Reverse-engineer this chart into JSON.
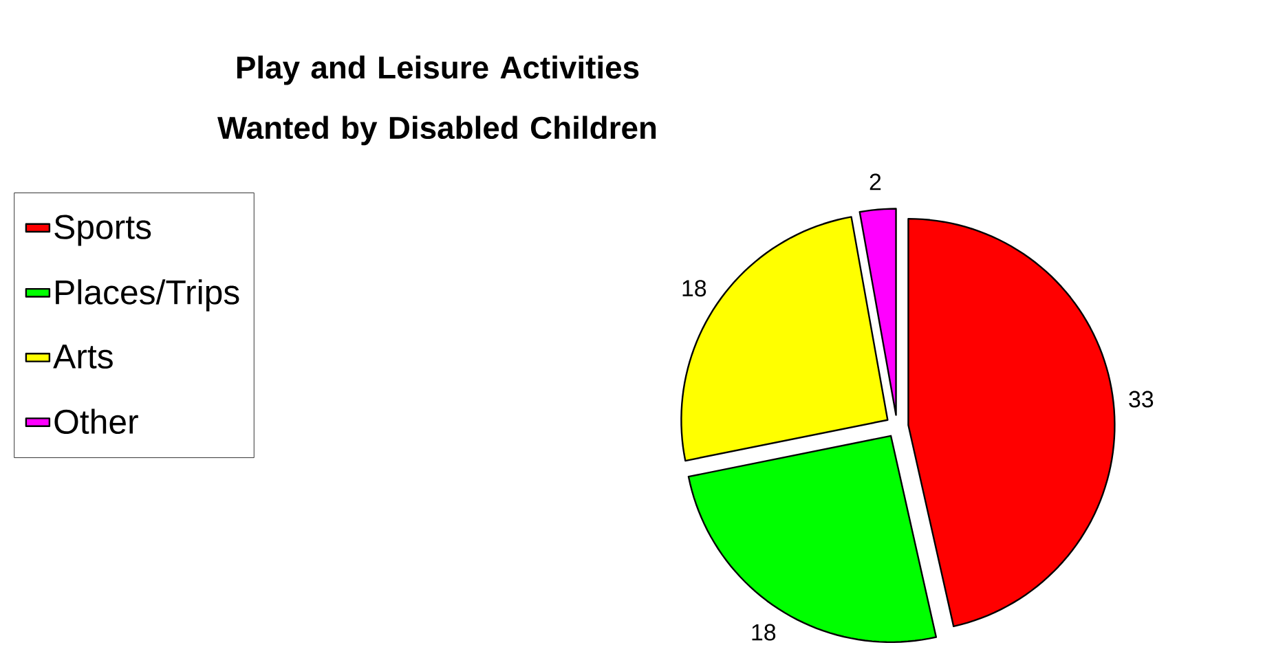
{
  "chart_data": {
    "type": "pie",
    "title": "Play and Leisure Activities Wanted by Disabled Children",
    "categories": [
      "Sports",
      "Places/Trips",
      "Arts",
      "Other"
    ],
    "values": [
      33,
      18,
      18,
      2
    ],
    "colors": [
      "#ff0000",
      "#00ff00",
      "#ffff00",
      "#ff00ff"
    ],
    "data_labels": true,
    "legend": "left"
  }
}
